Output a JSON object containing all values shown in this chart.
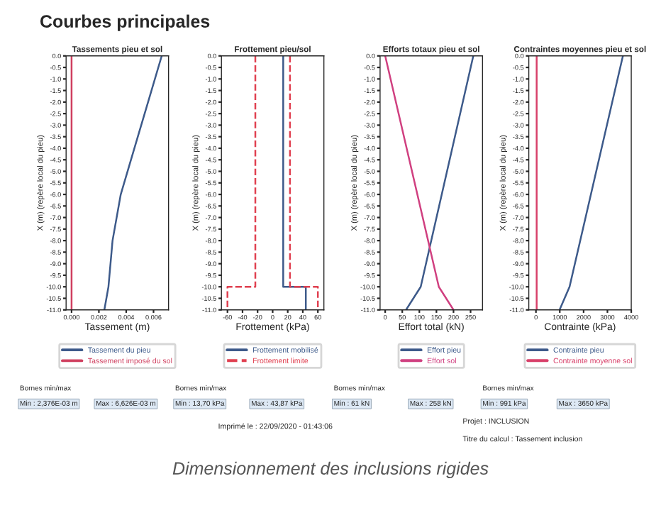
{
  "chart_data": [
    {
      "type": "line",
      "title": "Tassements pieu et sol",
      "xlabel": "Tassement (m)",
      "ylabel": "X (m) (repère local du pieu)",
      "series": [
        {
          "name": "Tassement du pieu",
          "color": "#3d5a8a",
          "x": [
            0.0066,
            0.0056,
            0.0046,
            0.0036,
            0.003,
            0.0027,
            0.0024
          ],
          "values": [
            0,
            -2,
            -4,
            -6,
            -8,
            -10,
            -11
          ]
        },
        {
          "name": "Tassement imposé du sol",
          "color": "#d04060",
          "x": [
            0,
            0
          ],
          "values": [
            0,
            -11
          ]
        }
      ],
      "xlim": [
        -0.0004,
        0.0071
      ],
      "xticks": [
        {
          "value": 0,
          "label": "0.000"
        },
        {
          "value": 0.002,
          "label": "0.002"
        },
        {
          "value": 0.004,
          "label": "0.004"
        },
        {
          "value": 0.006,
          "label": "0.006"
        }
      ],
      "ylim": [
        -11,
        0
      ],
      "yticks": [
        {
          "value": 0,
          "label": "0.0"
        },
        -0.5,
        {
          "value": -1,
          "label": "-1.0"
        },
        -1.5,
        {
          "value": -2,
          "label": "-2.0"
        },
        -2.5,
        {
          "value": -3,
          "label": "-3.0"
        },
        -3.5,
        {
          "value": -4,
          "label": "-4.0"
        },
        -4.5,
        {
          "value": -5,
          "label": "-5.0"
        },
        -5.5,
        {
          "value": -6,
          "label": "-6.0"
        },
        -6.5,
        {
          "value": -7,
          "label": "-7.0"
        },
        -7.5,
        {
          "value": -8,
          "label": "-8.0"
        },
        -8.5,
        {
          "value": -9,
          "label": "-9.0"
        },
        -9.5,
        {
          "value": -10,
          "label": "-10.0"
        },
        -10.5,
        {
          "value": -11,
          "label": "-11.0"
        }
      ],
      "legend": "bottom",
      "annotations": [
        "Bornes min/max",
        "Min : 2,376E-03 m",
        "Max : 6,626E-03 m",
        "Courbes principales",
        "Imprimé le : 22/09/2020 - 01:43:06",
        "Projet : INCLUSION",
        "Titre du calcul : Tassement inclusion",
        "Dimensionnement des inclusions rigides"
      ]
    },
    {
      "type": "line",
      "title": "Frottement pieu/sol",
      "xlabel": "Frottement (kPa)",
      "ylabel": "X (m) (repère local du pieu)",
      "series": [
        {
          "name": "Frottement mobilisé",
          "color": "#3d5a8a",
          "line_style": "solid",
          "x": [
            14,
            14,
            44,
            44
          ],
          "values": [
            0,
            -10,
            -10,
            -11
          ]
        },
        {
          "name": "Frottement limite",
          "color": "#e04050",
          "line_style": "dashed",
          "x": [
            23,
            23,
            60,
            60,
            null,
            -23,
            -23,
            -60,
            -60
          ],
          "values": [
            0,
            -10,
            -10,
            -11,
            null,
            0,
            -10,
            -10,
            -11
          ]
        }
      ],
      "xlim": [
        -68,
        68
      ],
      "xticks": [
        -60,
        -40,
        -20,
        0,
        20,
        40,
        60
      ],
      "ylim": [
        -11,
        0
      ],
      "yticks": [
        {
          "value": 0,
          "label": "0.0"
        },
        -0.5,
        {
          "value": -1,
          "label": "-1.0"
        },
        -1.5,
        {
          "value": -2,
          "label": "-2.0"
        },
        -2.5,
        {
          "value": -3,
          "label": "-3.0"
        },
        -3.5,
        {
          "value": -4,
          "label": "-4.0"
        },
        -4.5,
        {
          "value": -5,
          "label": "-5.0"
        },
        -5.5,
        {
          "value": -6,
          "label": "-6.0"
        },
        -6.5,
        {
          "value": -7,
          "label": "-7.0"
        },
        -7.5,
        {
          "value": -8,
          "label": "-8.0"
        },
        -8.5,
        {
          "value": -9,
          "label": "-9.0"
        },
        -9.5,
        {
          "value": -10,
          "label": "-10.0"
        },
        -10.5,
        {
          "value": -11,
          "label": "-11.0"
        }
      ],
      "legend": "bottom",
      "annotations": [
        "Bornes min/max",
        "Min : 13,70 kPa",
        "Max : 43,87 kPa"
      ]
    },
    {
      "type": "line",
      "title": "Efforts totaux pieu et sol",
      "xlabel": "Effort total (kN)",
      "ylabel": "X (m) (repère local du pieu)",
      "series": [
        {
          "name": "Effort pieu",
          "color": "#3d5a8a",
          "x": [
            258,
            104,
            61
          ],
          "values": [
            0,
            -10,
            -11
          ]
        },
        {
          "name": "Effort sol",
          "color": "#d04080",
          "x": [
            0,
            157,
            200
          ],
          "values": [
            0,
            -10,
            -11
          ]
        }
      ],
      "xlim": [
        -15,
        285
      ],
      "xticks": [
        0,
        50,
        100,
        150,
        200,
        250
      ],
      "ylim": [
        -11,
        0
      ],
      "yticks": [
        {
          "value": 0,
          "label": "0.0"
        },
        -0.5,
        {
          "value": -1,
          "label": "-1.0"
        },
        -1.5,
        {
          "value": -2,
          "label": "-2.0"
        },
        -2.5,
        {
          "value": -3,
          "label": "-3.0"
        },
        -3.5,
        {
          "value": -4,
          "label": "-4.0"
        },
        -4.5,
        {
          "value": -5,
          "label": "-5.0"
        },
        -5.5,
        {
          "value": -6,
          "label": "-6.0"
        },
        -6.5,
        {
          "value": -7,
          "label": "-7.0"
        },
        -7.5,
        {
          "value": -8,
          "label": "-8.0"
        },
        -8.5,
        {
          "value": -9,
          "label": "-9.0"
        },
        -9.5,
        {
          "value": -10,
          "label": "-10.0"
        },
        -10.5,
        {
          "value": -11,
          "label": "-11.0"
        }
      ],
      "legend": "bottom",
      "annotations": [
        "Bornes min/max",
        "Min : 61 kN",
        "Max : 258 kN"
      ]
    },
    {
      "type": "line",
      "title": "Contraintes moyennes pieu et sol",
      "xlabel": "Contrainte (kPa)",
      "ylabel": "X (m) (repère local du pieu)",
      "series": [
        {
          "name": "Contrainte pieu",
          "color": "#3d5a8a",
          "x": [
            3650,
            1410,
            991
          ],
          "values": [
            0,
            -10,
            -11
          ]
        },
        {
          "name": "Contrainte moyenne sol",
          "color": "#d8406a",
          "x": [
            30,
            30
          ],
          "values": [
            0,
            -11
          ]
        }
      ],
      "xlim": [
        -300,
        4000
      ],
      "xticks": [
        0,
        1000,
        2000,
        3000,
        4000
      ],
      "ylim": [
        -11,
        0
      ],
      "yticks": [
        {
          "value": 0,
          "label": "0.0"
        },
        -0.5,
        {
          "value": -1,
          "label": "-1.0"
        },
        -1.5,
        {
          "value": -2,
          "label": "-2.0"
        },
        -2.5,
        {
          "value": -3,
          "label": "-3.0"
        },
        -3.5,
        {
          "value": -4,
          "label": "-4.0"
        },
        -4.5,
        {
          "value": -5,
          "label": "-5.0"
        },
        -5.5,
        {
          "value": -6,
          "label": "-6.0"
        },
        -6.5,
        {
          "value": -7,
          "label": "-7.0"
        },
        -7.5,
        {
          "value": -8,
          "label": "-8.0"
        },
        -8.5,
        {
          "value": -9,
          "label": "-9.0"
        },
        -9.5,
        {
          "value": -10,
          "label": "-10.0"
        },
        -10.5,
        {
          "value": -11,
          "label": "-11.0"
        }
      ],
      "legend": "bottom",
      "annotations": [
        "Bornes min/max",
        "Min : 991 kPa",
        "Max : 3650 kPa"
      ]
    }
  ]
}
